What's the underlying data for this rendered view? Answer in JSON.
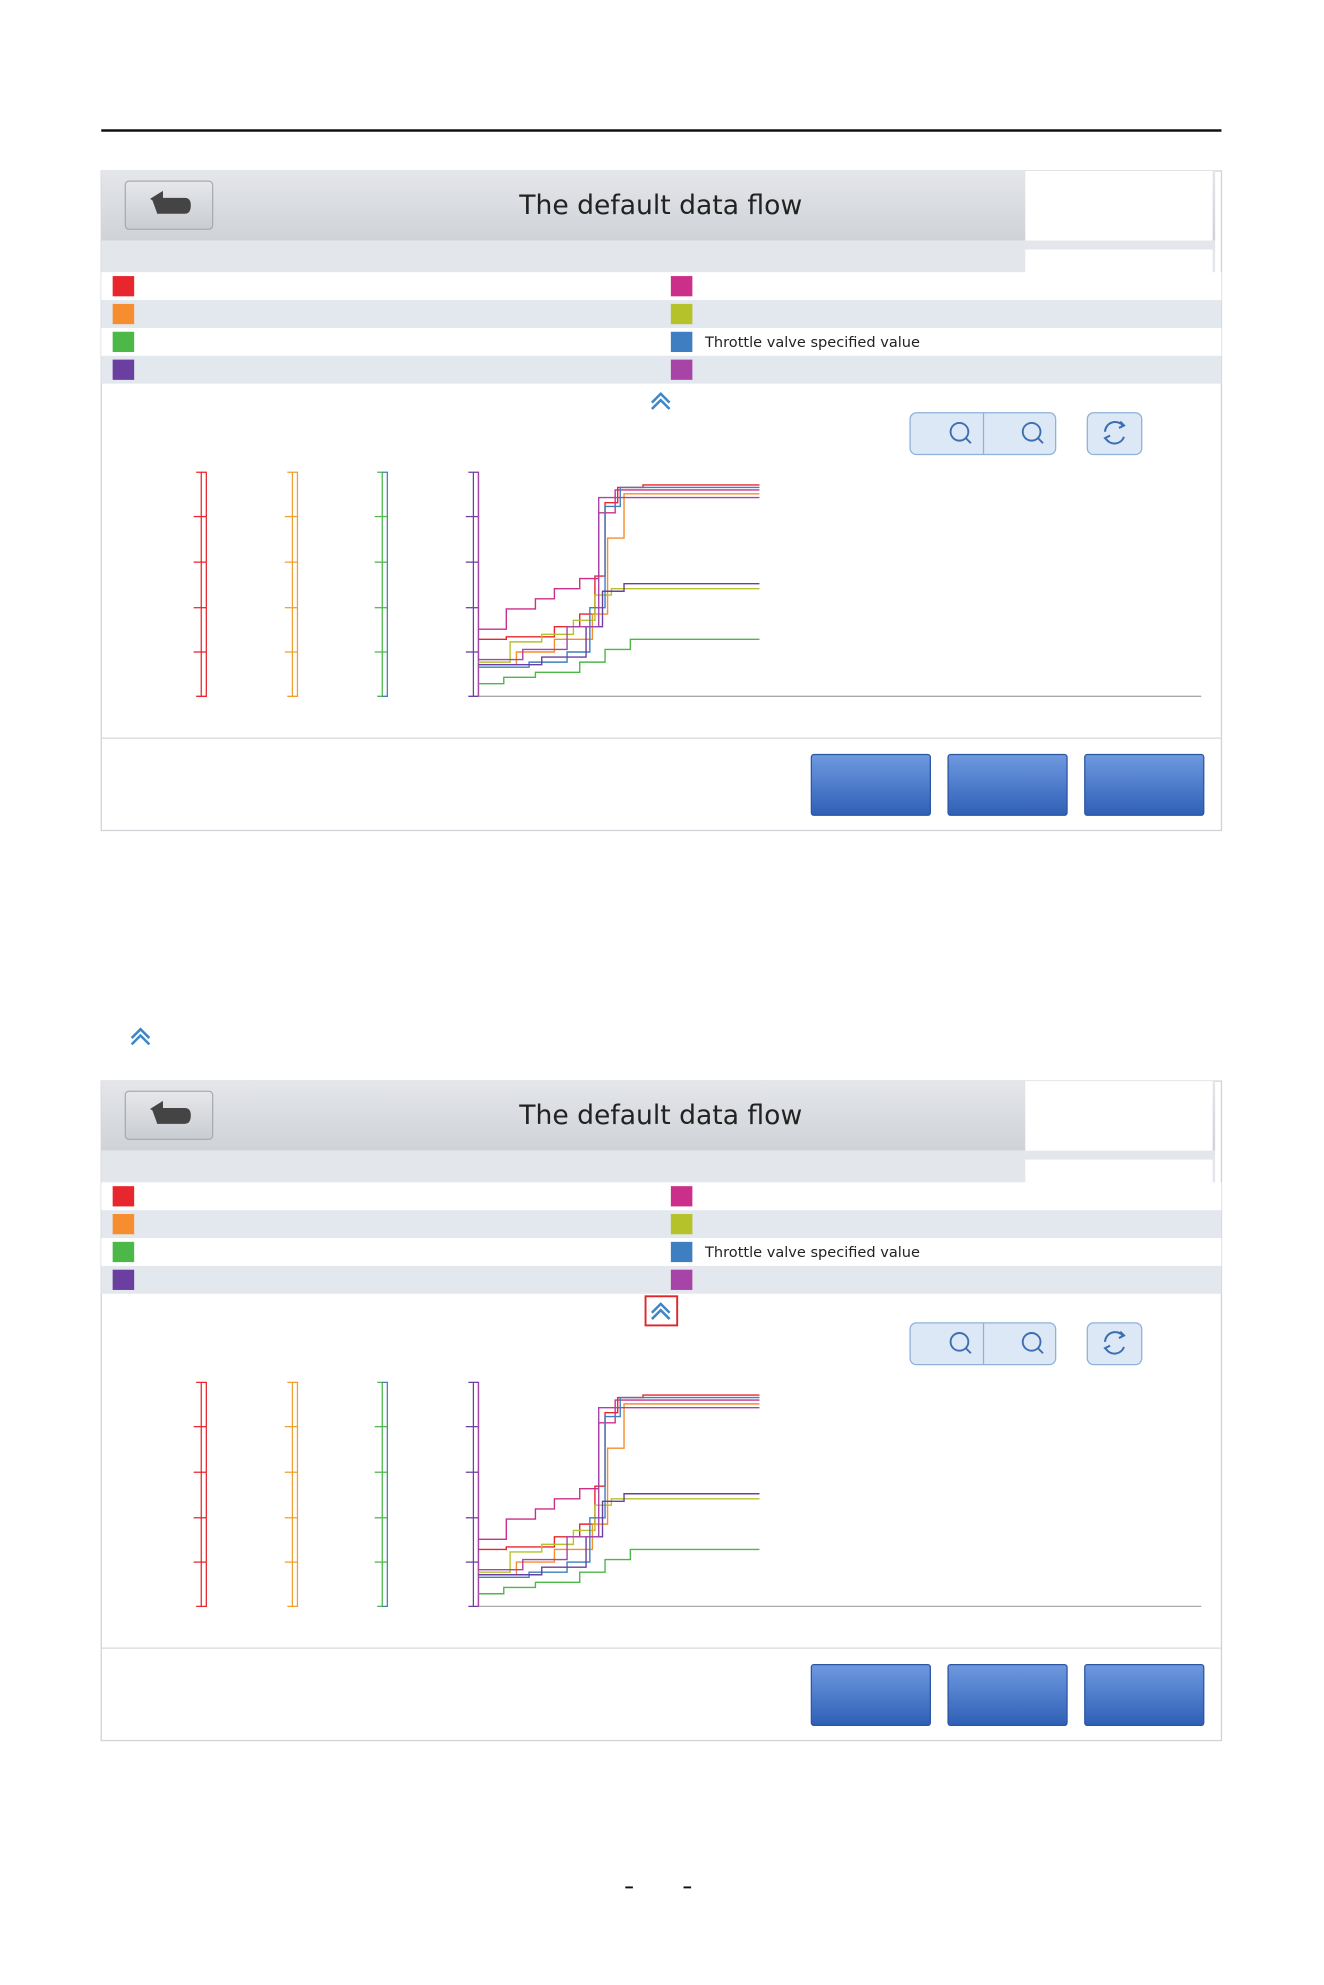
{
  "screens": [
    {
      "title": "The default data flow",
      "legend_label": "Throttle valve specified value"
    },
    {
      "title": "The default data flow",
      "legend_label": "Throttle valve specified value"
    }
  ]
}
